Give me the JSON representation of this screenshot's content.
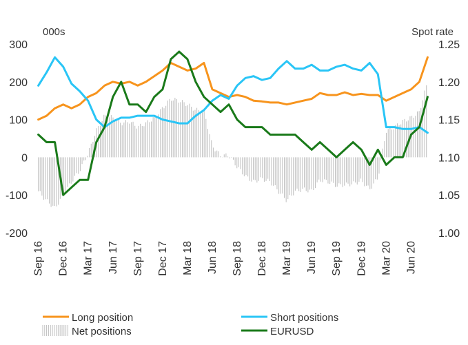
{
  "chart_data": {
    "type": "line",
    "left_axis_title": "000s",
    "right_axis_title": "Spot rate",
    "left_ticks": [
      300,
      200,
      100,
      0,
      -100,
      -200
    ],
    "left_tick_labels": [
      "300",
      "200",
      "100",
      "0",
      "-100",
      "-200"
    ],
    "right_ticks": [
      1.25,
      1.2,
      1.15,
      1.1,
      1.05,
      1.0
    ],
    "right_tick_labels": [
      "1.25",
      "1.20",
      "1.15",
      "1.10",
      "1.05",
      "1.00"
    ],
    "left_ylim": [
      -200,
      300
    ],
    "right_ylim": [
      1.0,
      1.25
    ],
    "x_tick_labels": [
      "Sep 16",
      "Dec 16",
      "Mar 17",
      "Jun 17",
      "Sep 17",
      "Dec 17",
      "Mar 18",
      "Jun 18",
      "Sep 18",
      "Dec 18",
      "Mar 19",
      "Jun 19",
      "Sep 19",
      "Dec 19",
      "Mar 20",
      "Jun 20"
    ],
    "x_tick_index": [
      0,
      3,
      6,
      9,
      12,
      15,
      18,
      21,
      24,
      27,
      30,
      33,
      36,
      39,
      42,
      45
    ],
    "x_range": [
      -0.3,
      47.3
    ],
    "grid": false,
    "legend_position": "bottom",
    "colors": {
      "long": "#F7941D",
      "short": "#29C5F6",
      "net": "#BDBDBD",
      "eurusd": "#1A7A1A"
    },
    "series": [
      {
        "name": "Long position",
        "axis": "left",
        "kind": "line",
        "color": "#F7941D",
        "x": [
          0,
          1,
          2,
          3,
          4,
          5,
          6,
          7,
          8,
          9,
          10,
          11,
          12,
          13,
          14,
          15,
          16,
          17,
          18,
          19,
          20,
          21,
          22,
          23,
          24,
          25,
          26,
          27,
          28,
          29,
          30,
          31,
          32,
          33,
          34,
          35,
          36,
          37,
          38,
          39,
          40,
          41,
          42,
          43,
          44,
          45,
          46,
          47
        ],
        "values": [
          100,
          110,
          130,
          140,
          130,
          140,
          160,
          170,
          190,
          200,
          195,
          200,
          190,
          200,
          215,
          230,
          250,
          240,
          230,
          235,
          250,
          180,
          170,
          160,
          165,
          160,
          150,
          148,
          145,
          145,
          140,
          145,
          150,
          155,
          170,
          165,
          165,
          172,
          165,
          168,
          165,
          165,
          150,
          160,
          170,
          180,
          200,
          265
        ]
      },
      {
        "name": "Short positions",
        "axis": "left",
        "kind": "line",
        "color": "#29C5F6",
        "x": [
          0,
          1,
          2,
          3,
          4,
          5,
          6,
          7,
          8,
          9,
          10,
          11,
          12,
          13,
          14,
          15,
          16,
          17,
          18,
          19,
          20,
          21,
          22,
          23,
          24,
          25,
          26,
          27,
          28,
          29,
          30,
          31,
          32,
          33,
          34,
          35,
          36,
          37,
          38,
          39,
          40,
          41,
          42,
          43,
          44,
          45,
          46,
          47
        ],
        "values": [
          190,
          225,
          265,
          240,
          195,
          175,
          150,
          100,
          80,
          95,
          105,
          105,
          110,
          110,
          110,
          100,
          95,
          90,
          90,
          110,
          125,
          150,
          165,
          155,
          190,
          210,
          215,
          205,
          210,
          235,
          255,
          235,
          235,
          245,
          230,
          230,
          240,
          245,
          235,
          230,
          250,
          220,
          80,
          80,
          75,
          75,
          80,
          65
        ]
      },
      {
        "name": "Net positions",
        "axis": "left",
        "kind": "bar",
        "color": "#BDBDBD",
        "x": [
          0,
          1,
          2,
          3,
          4,
          5,
          6,
          7,
          8,
          9,
          10,
          11,
          12,
          13,
          14,
          15,
          16,
          17,
          18,
          19,
          20,
          21,
          22,
          23,
          24,
          25,
          26,
          27,
          28,
          29,
          30,
          31,
          32,
          33,
          34,
          35,
          36,
          37,
          38,
          39,
          40,
          41,
          42,
          43,
          44,
          45,
          46,
          47
        ],
        "values": [
          -90,
          -115,
          -135,
          -100,
          -65,
          -35,
          10,
          70,
          110,
          105,
          90,
          95,
          80,
          90,
          105,
          130,
          155,
          150,
          140,
          125,
          125,
          30,
          5,
          5,
          -25,
          -50,
          -65,
          -57,
          -65,
          -90,
          -115,
          -90,
          -85,
          -90,
          -60,
          -65,
          -75,
          -73,
          -70,
          -62,
          -85,
          -55,
          70,
          80,
          95,
          105,
          120,
          200
        ]
      },
      {
        "name": "EURUSD",
        "axis": "right",
        "kind": "line",
        "color": "#1A7A1A",
        "x": [
          0,
          1,
          2,
          3,
          4,
          5,
          6,
          7,
          8,
          9,
          10,
          11,
          12,
          13,
          14,
          15,
          16,
          17,
          18,
          19,
          20,
          21,
          22,
          23,
          24,
          25,
          26,
          27,
          28,
          29,
          30,
          31,
          32,
          33,
          34,
          35,
          36,
          37,
          38,
          39,
          40,
          41,
          42,
          43,
          44,
          45,
          46,
          47
        ],
        "values": [
          1.13,
          1.12,
          1.12,
          1.05,
          1.06,
          1.07,
          1.07,
          1.12,
          1.14,
          1.18,
          1.2,
          1.17,
          1.17,
          1.16,
          1.18,
          1.19,
          1.23,
          1.24,
          1.23,
          1.2,
          1.18,
          1.17,
          1.16,
          1.17,
          1.15,
          1.14,
          1.14,
          1.14,
          1.13,
          1.13,
          1.13,
          1.13,
          1.12,
          1.11,
          1.12,
          1.11,
          1.1,
          1.11,
          1.12,
          1.11,
          1.09,
          1.11,
          1.09,
          1.1,
          1.1,
          1.13,
          1.14,
          1.18
        ]
      }
    ]
  }
}
